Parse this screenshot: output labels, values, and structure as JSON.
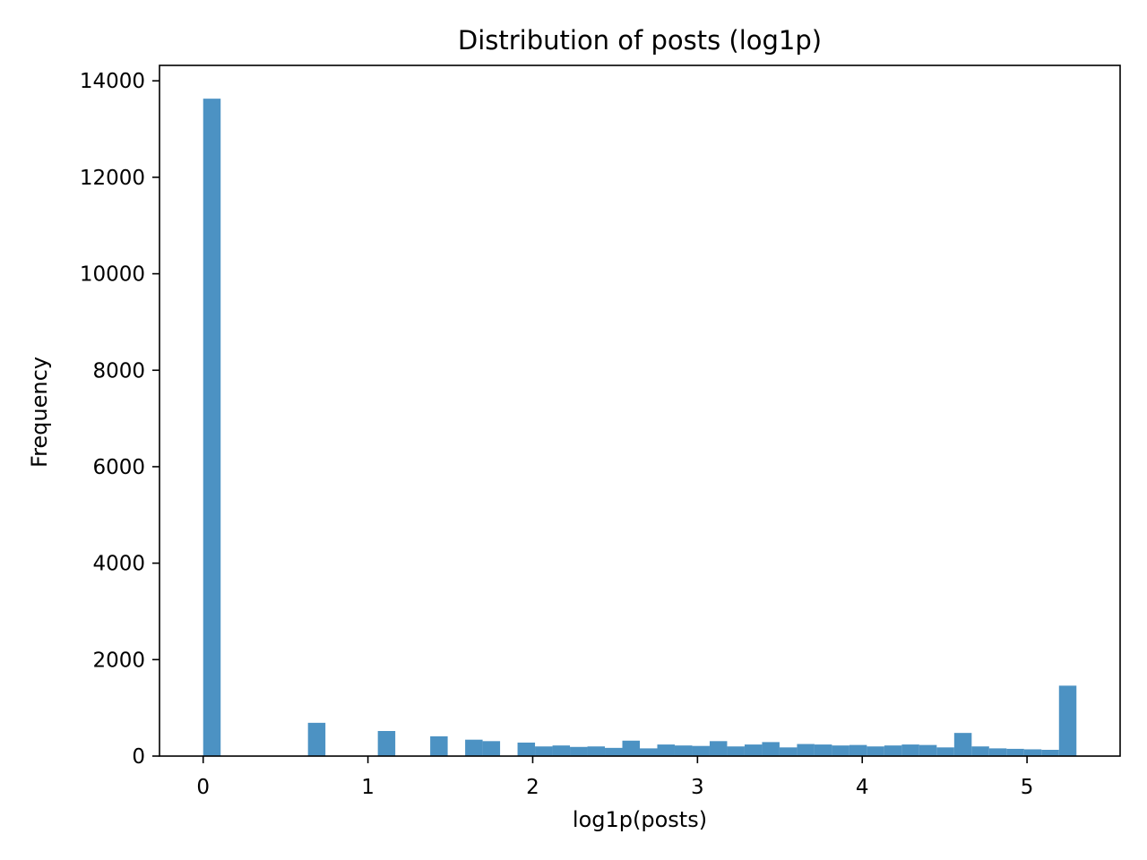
{
  "chart_data": {
    "type": "bar",
    "title": "Distribution of posts (log1p)",
    "xlabel": "log1p(posts)",
    "ylabel": "Frequency",
    "xlim": [
      -0.265,
      5.565
    ],
    "ylim": [
      0,
      14320
    ],
    "xticks": [
      0,
      1,
      2,
      3,
      4,
      5
    ],
    "yticks": [
      0,
      2000,
      4000,
      6000,
      8000,
      10000,
      12000,
      14000
    ],
    "bar_color": "#4c92c3",
    "bin_width": 0.106,
    "bins": [
      {
        "x0": 0.0,
        "value": 13630
      },
      {
        "x0": 0.636,
        "value": 690
      },
      {
        "x0": 1.06,
        "value": 520
      },
      {
        "x0": 1.378,
        "value": 410
      },
      {
        "x0": 1.59,
        "value": 340
      },
      {
        "x0": 1.696,
        "value": 310
      },
      {
        "x0": 1.908,
        "value": 280
      },
      {
        "x0": 2.014,
        "value": 200
      },
      {
        "x0": 2.12,
        "value": 220
      },
      {
        "x0": 2.226,
        "value": 190
      },
      {
        "x0": 2.332,
        "value": 200
      },
      {
        "x0": 2.438,
        "value": 170
      },
      {
        "x0": 2.544,
        "value": 320
      },
      {
        "x0": 2.65,
        "value": 160
      },
      {
        "x0": 2.756,
        "value": 240
      },
      {
        "x0": 2.862,
        "value": 220
      },
      {
        "x0": 2.968,
        "value": 210
      },
      {
        "x0": 3.074,
        "value": 310
      },
      {
        "x0": 3.18,
        "value": 200
      },
      {
        "x0": 3.286,
        "value": 240
      },
      {
        "x0": 3.392,
        "value": 290
      },
      {
        "x0": 3.498,
        "value": 180
      },
      {
        "x0": 3.604,
        "value": 250
      },
      {
        "x0": 3.71,
        "value": 240
      },
      {
        "x0": 3.816,
        "value": 220
      },
      {
        "x0": 3.922,
        "value": 230
      },
      {
        "x0": 4.028,
        "value": 200
      },
      {
        "x0": 4.134,
        "value": 220
      },
      {
        "x0": 4.24,
        "value": 240
      },
      {
        "x0": 4.346,
        "value": 230
      },
      {
        "x0": 4.452,
        "value": 180
      },
      {
        "x0": 4.558,
        "value": 480
      },
      {
        "x0": 4.664,
        "value": 200
      },
      {
        "x0": 4.77,
        "value": 160
      },
      {
        "x0": 4.876,
        "value": 150
      },
      {
        "x0": 4.982,
        "value": 140
      },
      {
        "x0": 5.088,
        "value": 130
      },
      {
        "x0": 5.194,
        "value": 1460
      }
    ],
    "grid": false,
    "legend": "none"
  }
}
